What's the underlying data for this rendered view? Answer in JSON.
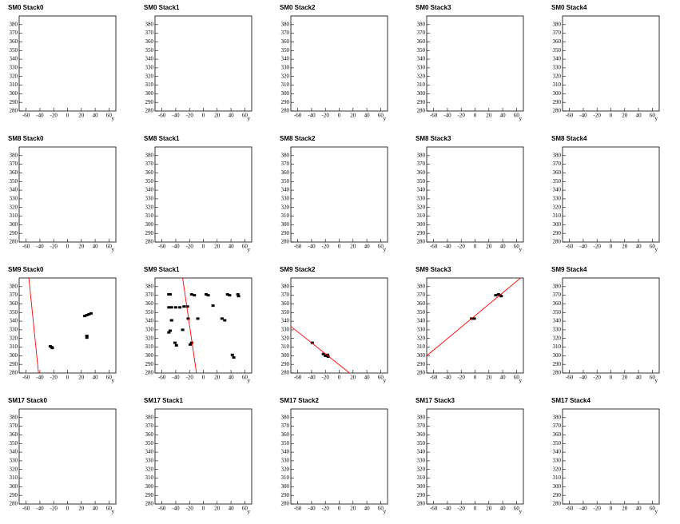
{
  "chart_data": [
    {
      "type": "scatter",
      "title": "SM0 Stack0",
      "x_label": "y",
      "xlim": [
        -70,
        70
      ],
      "ylim": [
        280,
        390
      ],
      "xticks": [
        -60,
        -40,
        -20,
        0,
        20,
        40,
        60
      ],
      "yticks": [
        280,
        290,
        300,
        310,
        320,
        330,
        340,
        350,
        360,
        370,
        380
      ],
      "series": []
    },
    {
      "type": "scatter",
      "title": "SM0 Stack1",
      "x_label": "y",
      "xlim": [
        -70,
        70
      ],
      "ylim": [
        280,
        390
      ],
      "xticks": [
        -60,
        -40,
        -20,
        0,
        20,
        40,
        60
      ],
      "yticks": [
        280,
        290,
        300,
        310,
        320,
        330,
        340,
        350,
        360,
        370,
        380
      ],
      "series": []
    },
    {
      "type": "scatter",
      "title": "SM0 Stack2",
      "x_label": "y",
      "xlim": [
        -70,
        70
      ],
      "ylim": [
        280,
        390
      ],
      "xticks": [
        -60,
        -40,
        -20,
        0,
        20,
        40,
        60
      ],
      "yticks": [
        280,
        290,
        300,
        310,
        320,
        330,
        340,
        350,
        360,
        370,
        380
      ],
      "series": []
    },
    {
      "type": "scatter",
      "title": "SM0 Stack3",
      "x_label": "y",
      "xlim": [
        -70,
        70
      ],
      "ylim": [
        280,
        390
      ],
      "xticks": [
        -60,
        -40,
        -20,
        0,
        20,
        40,
        60
      ],
      "yticks": [
        280,
        290,
        300,
        310,
        320,
        330,
        340,
        350,
        360,
        370,
        380
      ],
      "series": []
    },
    {
      "type": "scatter",
      "title": "SM0 Stack4",
      "x_label": "y",
      "xlim": [
        -70,
        70
      ],
      "ylim": [
        280,
        390
      ],
      "xticks": [
        -60,
        -40,
        -20,
        0,
        20,
        40,
        60
      ],
      "yticks": [
        280,
        290,
        300,
        310,
        320,
        330,
        340,
        350,
        360,
        370,
        380
      ],
      "series": []
    },
    {
      "type": "scatter",
      "title": "SM8 Stack0",
      "x_label": "y",
      "xlim": [
        -70,
        70
      ],
      "ylim": [
        280,
        390
      ],
      "xticks": [
        -60,
        -40,
        -20,
        0,
        20,
        40,
        60
      ],
      "yticks": [
        280,
        290,
        300,
        310,
        320,
        330,
        340,
        350,
        360,
        370,
        380
      ],
      "series": []
    },
    {
      "type": "scatter",
      "title": "SM8 Stack1",
      "x_label": "y",
      "xlim": [
        -70,
        70
      ],
      "ylim": [
        280,
        390
      ],
      "xticks": [
        -60,
        -40,
        -20,
        0,
        20,
        40,
        60
      ],
      "yticks": [
        280,
        290,
        300,
        310,
        320,
        330,
        340,
        350,
        360,
        370,
        380
      ],
      "series": []
    },
    {
      "type": "scatter",
      "title": "SM8 Stack2",
      "x_label": "y",
      "xlim": [
        -70,
        70
      ],
      "ylim": [
        280,
        390
      ],
      "xticks": [
        -60,
        -40,
        -20,
        0,
        20,
        40,
        60
      ],
      "yticks": [
        280,
        290,
        300,
        310,
        320,
        330,
        340,
        350,
        360,
        370,
        380
      ],
      "series": []
    },
    {
      "type": "scatter",
      "title": "SM8 Stack3",
      "x_label": "y",
      "xlim": [
        -70,
        70
      ],
      "ylim": [
        280,
        390
      ],
      "xticks": [
        -60,
        -40,
        -20,
        0,
        20,
        40,
        60
      ],
      "yticks": [
        280,
        290,
        300,
        310,
        320,
        330,
        340,
        350,
        360,
        370,
        380
      ],
      "series": []
    },
    {
      "type": "scatter",
      "title": "SM8 Stack4",
      "x_label": "y",
      "xlim": [
        -70,
        70
      ],
      "ylim": [
        280,
        390
      ],
      "xticks": [
        -60,
        -40,
        -20,
        0,
        20,
        40,
        60
      ],
      "yticks": [
        280,
        290,
        300,
        310,
        320,
        330,
        340,
        350,
        360,
        370,
        380
      ],
      "series": []
    },
    {
      "type": "scatter",
      "title": "SM9 Stack0",
      "x_label": "y",
      "xlim": [
        -70,
        70
      ],
      "ylim": [
        280,
        390
      ],
      "xticks": [
        -60,
        -40,
        -20,
        0,
        20,
        40,
        60
      ],
      "yticks": [
        280,
        290,
        300,
        310,
        320,
        330,
        340,
        350,
        360,
        370,
        380
      ],
      "series": [
        {
          "type": "scatter",
          "color": "#000000",
          "x": [
            -25,
            -23,
            -22,
            25,
            28,
            31,
            34,
            28,
            28
          ],
          "values": [
            311,
            310,
            309,
            346,
            347,
            348,
            349,
            323,
            321
          ]
        },
        {
          "type": "line",
          "color": "#ff0000",
          "x": [
            -56,
            -42
          ],
          "values": [
            390,
            280
          ]
        }
      ]
    },
    {
      "type": "scatter",
      "title": "SM9 Stack1",
      "x_label": "y",
      "xlim": [
        -70,
        70
      ],
      "ylim": [
        280,
        390
      ],
      "xticks": [
        -60,
        -40,
        -20,
        0,
        20,
        40,
        60
      ],
      "yticks": [
        280,
        290,
        300,
        310,
        320,
        330,
        340,
        350,
        360,
        370,
        380
      ],
      "series": [
        {
          "type": "scatter",
          "color": "#000000",
          "x": [
            -50,
            -48,
            -17,
            -13,
            4,
            7,
            35,
            38,
            50,
            51,
            -50,
            -46,
            -40,
            -34,
            -28,
            -23,
            14,
            -46,
            -46,
            -22,
            -8,
            27,
            31,
            -30,
            -48,
            -50,
            -41,
            -39,
            -17,
            -19,
            42,
            44
          ],
          "values": [
            371,
            371,
            371,
            370,
            371,
            370,
            371,
            370,
            371,
            369,
            356,
            356,
            356,
            356,
            357,
            357,
            358,
            341,
            341,
            343,
            343,
            343,
            341,
            330,
            329,
            327,
            315,
            312,
            315,
            313,
            301,
            298
          ]
        },
        {
          "type": "line",
          "color": "#ff0000",
          "x": [
            -30,
            -10
          ],
          "values": [
            390,
            280
          ]
        }
      ]
    },
    {
      "type": "scatter",
      "title": "SM9 Stack2",
      "x_label": "y",
      "xlim": [
        -70,
        70
      ],
      "ylim": [
        280,
        390
      ],
      "xticks": [
        -60,
        -40,
        -20,
        0,
        20,
        40,
        60
      ],
      "yticks": [
        280,
        290,
        300,
        310,
        320,
        330,
        340,
        350,
        360,
        370,
        380
      ],
      "series": [
        {
          "type": "scatter",
          "color": "#000000",
          "x": [
            -39,
            -23,
            -20,
            -17,
            -16
          ],
          "values": [
            315,
            302,
            300,
            301,
            299
          ]
        },
        {
          "type": "line",
          "color": "#ff0000",
          "x": [
            -70,
            15
          ],
          "values": [
            334,
            280
          ]
        }
      ]
    },
    {
      "type": "scatter",
      "title": "SM9 Stack3",
      "x_label": "y",
      "xlim": [
        -70,
        70
      ],
      "ylim": [
        280,
        390
      ],
      "xticks": [
        -60,
        -40,
        -20,
        0,
        20,
        40,
        60
      ],
      "yticks": [
        280,
        290,
        300,
        310,
        320,
        330,
        340,
        350,
        360,
        370,
        380
      ],
      "series": [
        {
          "type": "scatter",
          "color": "#000000",
          "x": [
            -5,
            -1,
            30,
            34,
            36,
            38
          ],
          "values": [
            343,
            343,
            370,
            371,
            370,
            369
          ]
        },
        {
          "type": "line",
          "color": "#ff0000",
          "x": [
            -70,
            66
          ],
          "values": [
            300,
            390
          ]
        }
      ]
    },
    {
      "type": "scatter",
      "title": "SM9 Stack4",
      "x_label": "y",
      "xlim": [
        -70,
        70
      ],
      "ylim": [
        280,
        390
      ],
      "xticks": [
        -60,
        -40,
        -20,
        0,
        20,
        40,
        60
      ],
      "yticks": [
        280,
        290,
        300,
        310,
        320,
        330,
        340,
        350,
        360,
        370,
        380
      ],
      "series": []
    },
    {
      "type": "scatter",
      "title": "SM17 Stack0",
      "x_label": "y",
      "xlim": [
        -70,
        70
      ],
      "ylim": [
        280,
        390
      ],
      "xticks": [
        -60,
        -40,
        -20,
        0,
        20,
        40,
        60
      ],
      "yticks": [
        280,
        290,
        300,
        310,
        320,
        330,
        340,
        350,
        360,
        370,
        380
      ],
      "series": []
    },
    {
      "type": "scatter",
      "title": "SM17 Stack1",
      "x_label": "y",
      "xlim": [
        -70,
        70
      ],
      "ylim": [
        280,
        390
      ],
      "xticks": [
        -60,
        -40,
        -20,
        0,
        20,
        40,
        60
      ],
      "yticks": [
        280,
        290,
        300,
        310,
        320,
        330,
        340,
        350,
        360,
        370,
        380
      ],
      "series": []
    },
    {
      "type": "scatter",
      "title": "SM17 Stack2",
      "x_label": "y",
      "xlim": [
        -70,
        70
      ],
      "ylim": [
        280,
        390
      ],
      "xticks": [
        -60,
        -40,
        -20,
        0,
        20,
        40,
        60
      ],
      "yticks": [
        280,
        290,
        300,
        310,
        320,
        330,
        340,
        350,
        360,
        370,
        380
      ],
      "series": []
    },
    {
      "type": "scatter",
      "title": "SM17 Stack3",
      "x_label": "y",
      "xlim": [
        -70,
        70
      ],
      "ylim": [
        280,
        390
      ],
      "xticks": [
        -60,
        -40,
        -20,
        0,
        20,
        40,
        60
      ],
      "yticks": [
        280,
        290,
        300,
        310,
        320,
        330,
        340,
        350,
        360,
        370,
        380
      ],
      "series": []
    },
    {
      "type": "scatter",
      "title": "SM17 Stack4",
      "x_label": "y",
      "xlim": [
        -70,
        70
      ],
      "ylim": [
        280,
        390
      ],
      "xticks": [
        -60,
        -40,
        -20,
        0,
        20,
        40,
        60
      ],
      "yticks": [
        280,
        290,
        300,
        310,
        320,
        330,
        340,
        350,
        360,
        370,
        380
      ],
      "series": []
    }
  ]
}
